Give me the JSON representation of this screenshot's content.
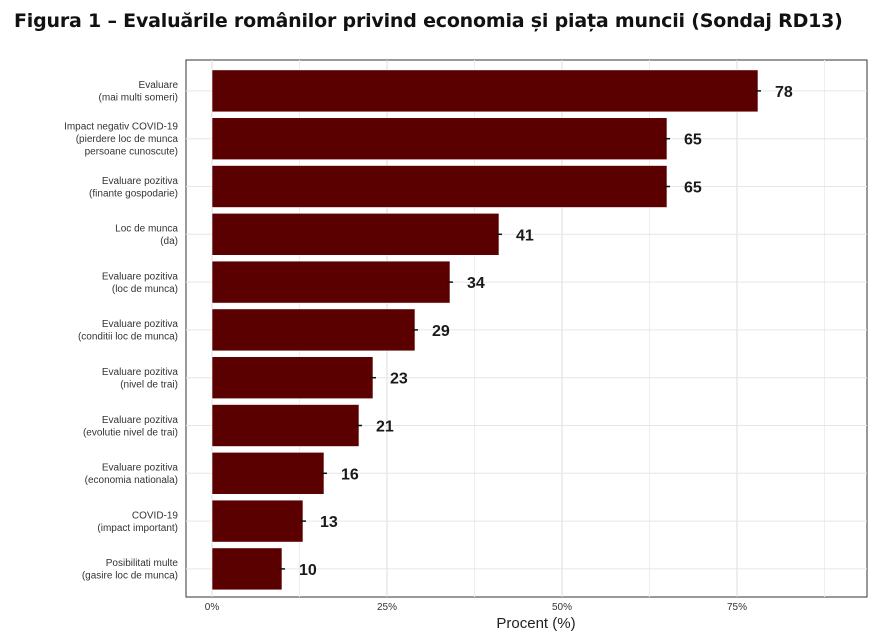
{
  "figure": {
    "title": "Figura 1 – Evaluările românilor privind economia și piața muncii (Sondaj RD13)"
  },
  "chart_data": {
    "type": "bar",
    "orientation": "horizontal",
    "categories": [
      [
        "Evaluare",
        "(mai multi someri)"
      ],
      [
        "Impact negativ COVID-19",
        "(pierdere loc de munca",
        "persoane cunoscute)"
      ],
      [
        "Evaluare pozitiva",
        "(finante gospodarie)"
      ],
      [
        "Loc de munca",
        "(da)"
      ],
      [
        "Evaluare pozitiva",
        "(loc de munca)"
      ],
      [
        "Evaluare pozitiva",
        "(conditii loc de munca)"
      ],
      [
        "Evaluare pozitiva",
        "(nivel de trai)"
      ],
      [
        "Evaluare pozitiva",
        "(evolutie nivel de trai)"
      ],
      [
        "Evaluare pozitiva",
        "(economia nationala)"
      ],
      [
        "COVID-19",
        "(impact important)"
      ],
      [
        "Posibilitati multe",
        "(gasire loc de munca)"
      ]
    ],
    "values": [
      78,
      65,
      65,
      41,
      34,
      29,
      23,
      21,
      16,
      13,
      10
    ],
    "xlabel": "Procent (%)",
    "ylabel": "",
    "xlim": [
      0,
      90
    ],
    "xticks": [
      0,
      25,
      50,
      75
    ],
    "xtick_labels": [
      "0%",
      "25%",
      "50%",
      "75%"
    ],
    "grid": true,
    "legend": "none",
    "bar_color": "#5a0000"
  }
}
